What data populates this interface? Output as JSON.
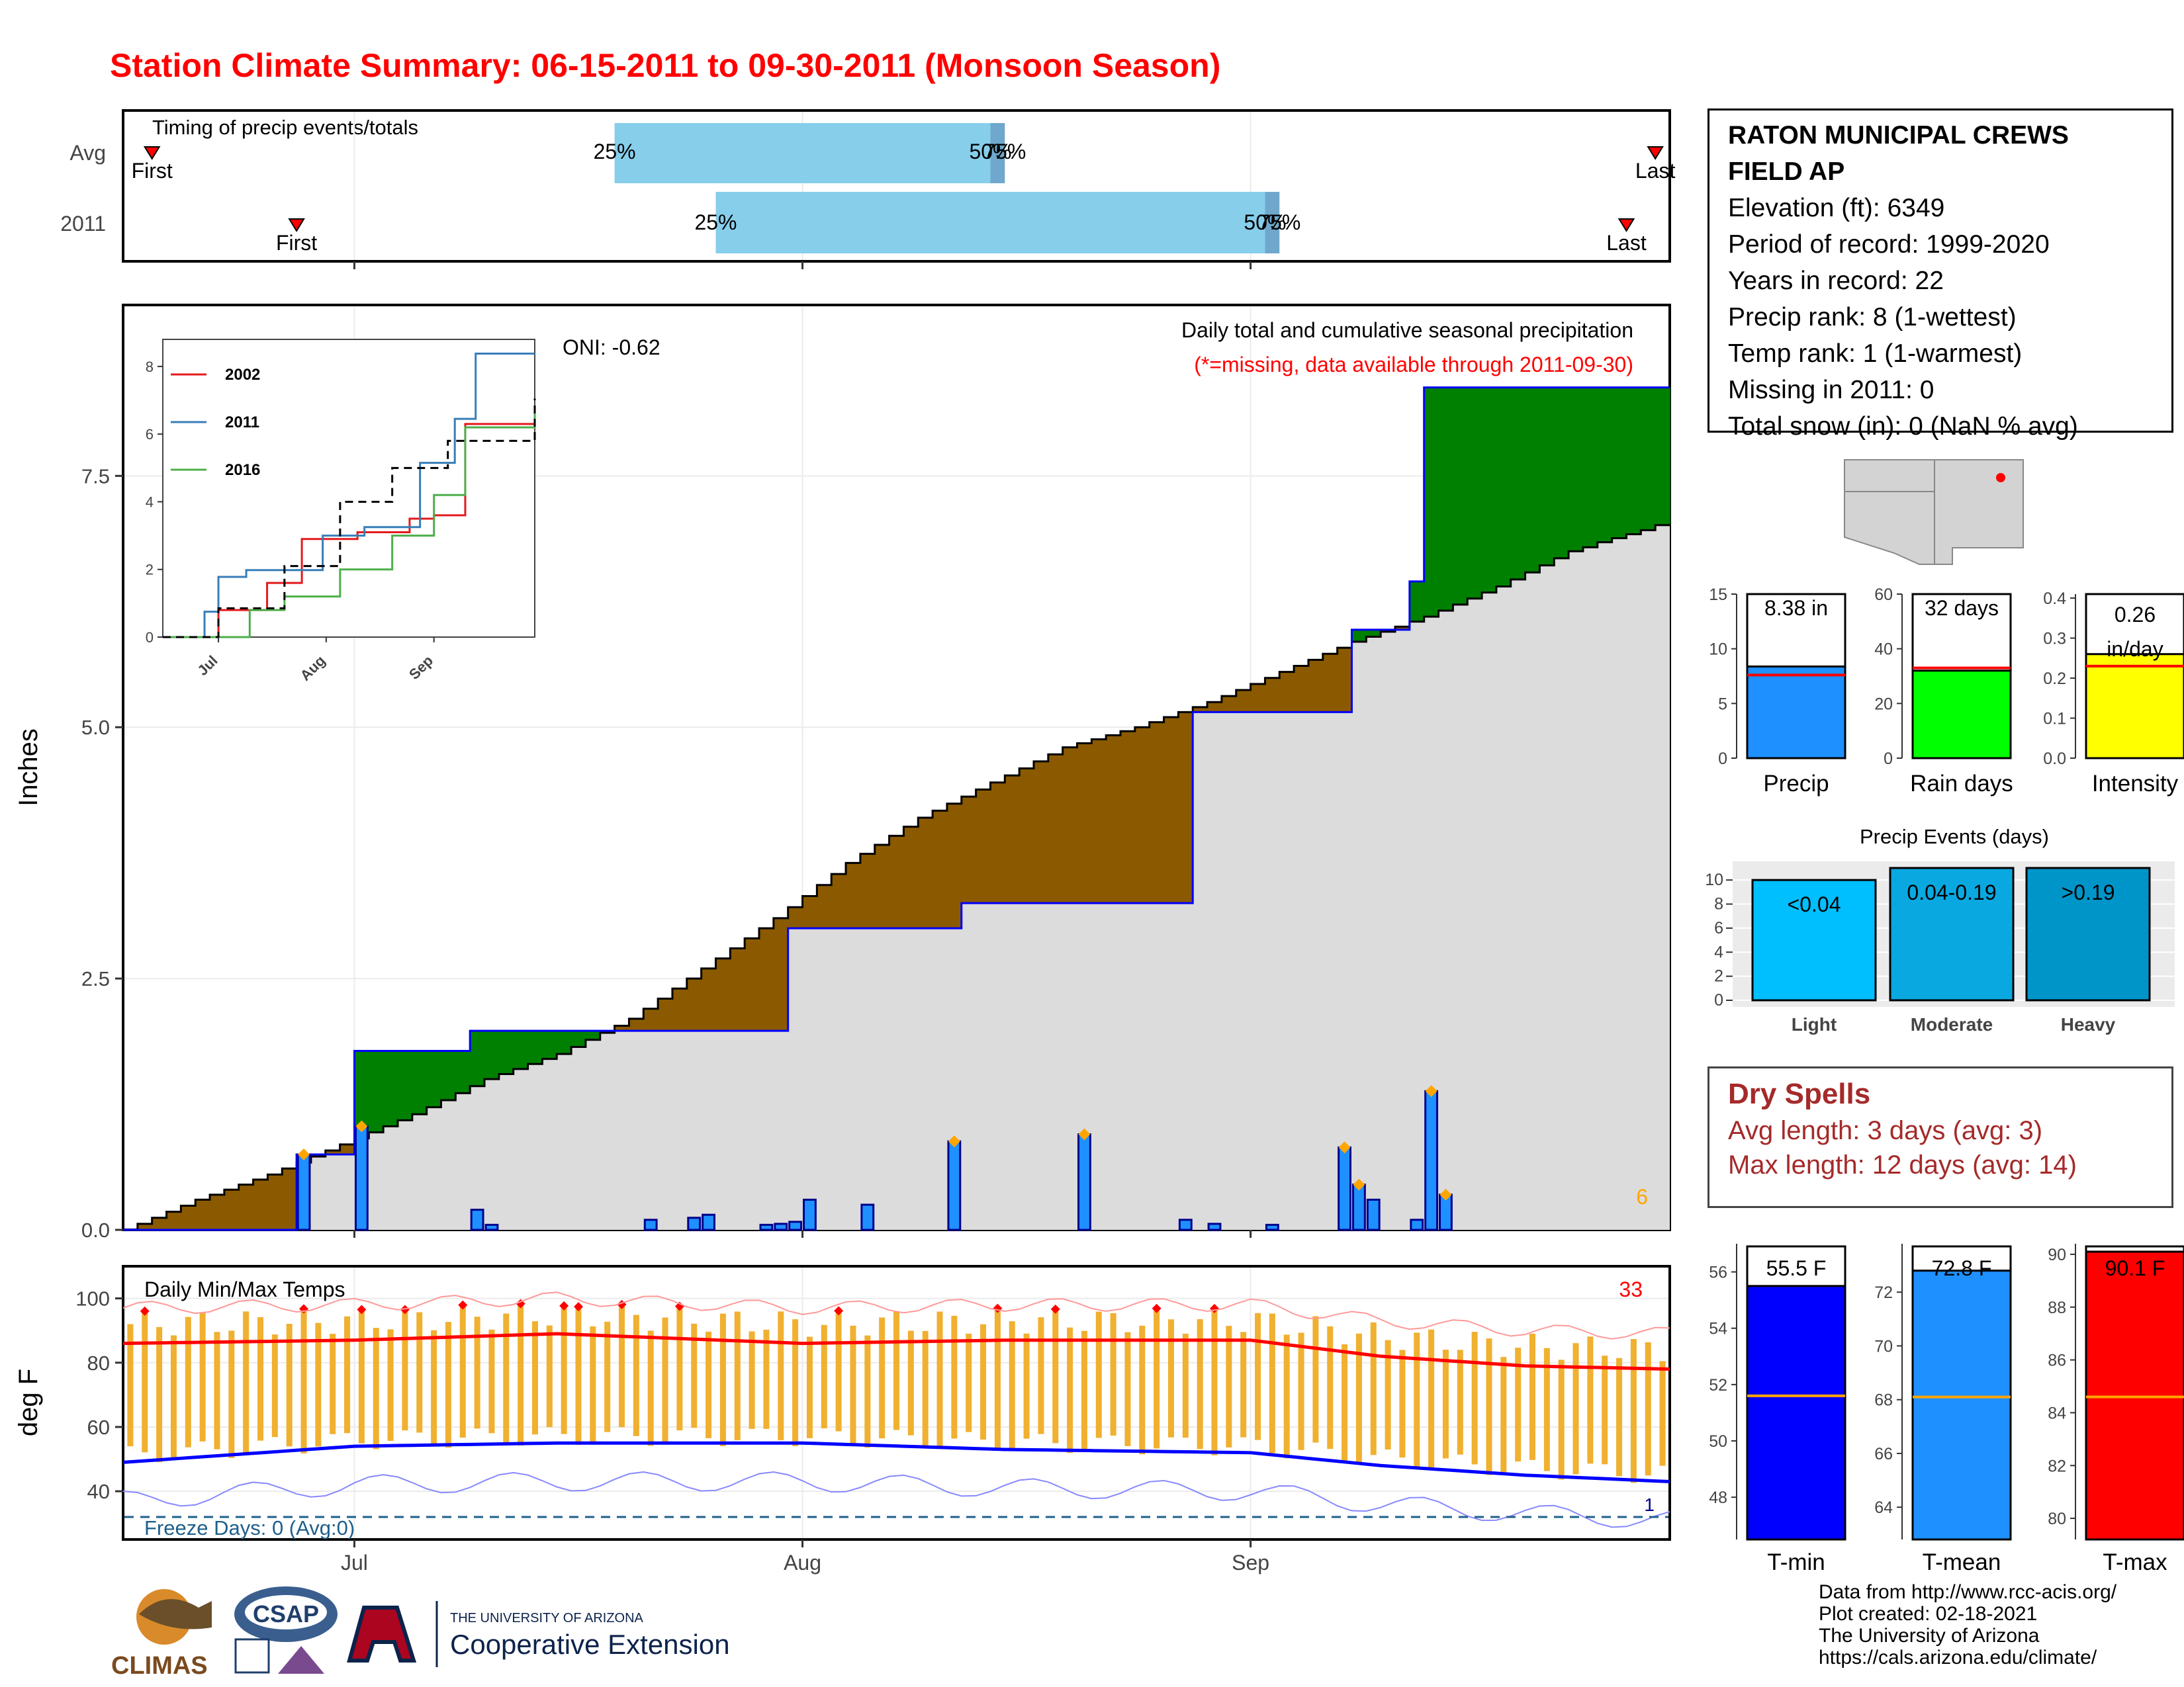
{
  "title": "Station Climate Summary: 06-15-2011 to 09-30-2011 (Monsoon Season)",
  "station": {
    "name_line1": "RATON MUNICIPAL CREWS",
    "name_line2": "FIELD AP",
    "elevation": "Elevation (ft): 6349",
    "period": "Period of record: 1999-2020",
    "years": "Years in record: 22",
    "precip_rank": "Precip rank: 8 (1-wettest)",
    "temp_rank": "Temp rank: 1 (1-warmest)",
    "missing": "Missing in 2011: 0",
    "snow": "Total snow (in): 0 (NaN % avg)"
  },
  "timing": {
    "title": "Timing of precip events/totals",
    "rows": [
      {
        "label": "Avg",
        "first": "First",
        "last": "Last",
        "p25": "25%",
        "p50": "50%",
        "p75": "75%"
      },
      {
        "label": "2011",
        "first": "First",
        "last": "Last",
        "p25": "25%",
        "p50": "50%",
        "p75": "75%"
      }
    ]
  },
  "precip_panel": {
    "ylabel": "Inches",
    "oni": "ONI: -0.62",
    "subtitle": "Daily total and cumulative seasonal precipitation",
    "note": "(*=missing, data available through 2011-09-30)",
    "corner_count": "6",
    "y_ticks": [
      "0.0",
      "2.5",
      "5.0",
      "7.5"
    ]
  },
  "temp_panel": {
    "ylabel": "deg F",
    "title": "Daily Min/Max Temps",
    "count": "33",
    "freeze": "Freeze Days: 0 (Avg:0)",
    "freeze_count": "1",
    "y_ticks": [
      "40",
      "60",
      "80",
      "100"
    ],
    "x_ticks": [
      "Jul",
      "Aug",
      "Sep"
    ]
  },
  "summary_bars": {
    "precip": {
      "value_label": "8.38 in",
      "label": "Precip",
      "ticks": [
        "0",
        "5",
        "10",
        "15"
      ]
    },
    "rain_days": {
      "value_label": "32 days",
      "label": "Rain days",
      "ticks": [
        "0",
        "20",
        "40",
        "60"
      ]
    },
    "intensity": {
      "value_label1": "0.26",
      "value_label2": "in/day",
      "label": "Intensity",
      "ticks": [
        "0.0",
        "0.1",
        "0.2",
        "0.3",
        "0.4"
      ]
    }
  },
  "events": {
    "title": "Precip Events (days)",
    "ticks": [
      "0",
      "2",
      "4",
      "6",
      "8",
      "10"
    ],
    "bars": [
      {
        "label": "<0.04",
        "cat": "Light"
      },
      {
        "label": "0.04-0.19",
        "cat": "Moderate"
      },
      {
        "label": ">0.19",
        "cat": "Heavy"
      }
    ]
  },
  "dry_spells": {
    "title": "Dry Spells",
    "avg": "Avg length: 3 days (avg: 3)",
    "max": "Max length: 12 days (avg: 14)"
  },
  "temp_bars": {
    "tmin": {
      "value_label": "55.5 F",
      "label": "T-min",
      "ticks": [
        "48",
        "50",
        "52",
        "54",
        "56"
      ]
    },
    "tmean": {
      "value_label": "72.8 F",
      "label": "T-mean",
      "ticks": [
        "64",
        "66",
        "68",
        "70",
        "72"
      ]
    },
    "tmax": {
      "value_label": "90.1 F",
      "label": "T-max",
      "ticks": [
        "80",
        "82",
        "84",
        "86",
        "88",
        "90"
      ]
    }
  },
  "inset": {
    "legend": [
      "2002",
      "2011",
      "2016"
    ],
    "y_ticks": [
      "0",
      "2",
      "4",
      "6",
      "8"
    ],
    "x_ticks": [
      "Jul",
      "Aug",
      "Sep"
    ]
  },
  "credits": [
    "Data from http://www.rcc-acis.org/",
    "Plot created: 02-18-2021",
    "The University of Arizona",
    "https://cals.arizona.edu/climate/"
  ],
  "logos": {
    "climas": "CLIMAS",
    "csap": "CSAP",
    "ua_top": "THE UNIVERSITY OF ARIZONA",
    "ua_main": "Cooperative Extension"
  },
  "chart_data": [
    {
      "type": "bar",
      "title": "Timing of precip events/totals",
      "categories": [
        "Avg",
        "2011"
      ],
      "series": [
        {
          "name": "First",
          "values": [
            "2011-06-17",
            "2011-06-27"
          ]
        },
        {
          "name": "25%",
          "values": [
            "2011-07-19",
            "2011-07-26"
          ]
        },
        {
          "name": "50%",
          "values": [
            "2011-08-14",
            "2011-09-02"
          ]
        },
        {
          "name": "75%",
          "values": [
            "2011-08-14",
            "2011-09-02"
          ]
        },
        {
          "name": "Last",
          "values": [
            "2011-09-29",
            "2011-09-27"
          ]
        }
      ]
    },
    {
      "type": "area",
      "title": "Daily total and cumulative seasonal precipitation",
      "ylabel": "Inches",
      "ylim": [
        0,
        9.2
      ],
      "xlim": [
        "2011-06-15",
        "2011-09-30"
      ],
      "avg_cumulative": {
        "x": [
          "2011-06-15",
          "2011-06-20",
          "2011-06-25",
          "2011-06-30",
          "2011-07-05",
          "2011-07-10",
          "2011-07-15",
          "2011-07-20",
          "2011-07-25",
          "2011-07-30",
          "2011-08-04",
          "2011-08-09",
          "2011-08-14",
          "2011-08-19",
          "2011-08-24",
          "2011-08-29",
          "2011-09-03",
          "2011-09-08",
          "2011-09-13",
          "2011-09-18",
          "2011-09-23",
          "2011-09-30"
        ],
        "values": [
          0.0,
          0.3,
          0.55,
          0.85,
          1.15,
          1.5,
          1.75,
          2.1,
          2.6,
          3.1,
          3.65,
          4.1,
          4.45,
          4.8,
          5.0,
          5.25,
          5.55,
          5.85,
          6.1,
          6.4,
          6.75,
          7.05
        ]
      },
      "cumulative_2011": {
        "x": [
          "2011-06-15",
          "2011-06-26",
          "2011-06-27",
          "2011-06-30",
          "2011-07-01",
          "2011-07-08",
          "2011-07-09",
          "2011-07-24",
          "2011-07-31",
          "2011-08-11",
          "2011-08-12",
          "2011-08-21",
          "2011-08-28",
          "2011-09-07",
          "2011-09-08",
          "2011-09-12",
          "2011-09-13",
          "2011-09-30"
        ],
        "values": [
          0.0,
          0.0,
          0.75,
          0.75,
          1.78,
          1.78,
          1.98,
          1.98,
          3.0,
          3.0,
          3.25,
          3.25,
          5.15,
          5.15,
          5.97,
          6.45,
          8.38,
          8.38
        ]
      },
      "daily_2011": {
        "x": [
          "2011-06-27",
          "2011-07-01",
          "2011-07-09",
          "2011-07-10",
          "2011-07-21",
          "2011-07-24",
          "2011-07-25",
          "2011-07-29",
          "2011-07-30",
          "2011-07-31",
          "2011-08-01",
          "2011-08-05",
          "2011-08-11",
          "2011-08-20",
          "2011-08-27",
          "2011-08-29",
          "2011-09-02",
          "2011-09-07",
          "2011-09-08",
          "2011-09-09",
          "2011-09-12",
          "2011-09-13",
          "2011-09-14"
        ],
        "values": [
          0.75,
          1.03,
          0.2,
          0.05,
          0.1,
          0.12,
          0.15,
          0.05,
          0.06,
          0.08,
          0.3,
          0.25,
          0.88,
          0.95,
          0.1,
          0.06,
          0.05,
          0.82,
          0.45,
          0.3,
          0.1,
          1.38,
          0.35
        ]
      }
    },
    {
      "type": "line",
      "title": "Daily Min/Max Temps",
      "ylabel": "deg F",
      "ylim": [
        25,
        110
      ],
      "series": [
        {
          "name": "Avg Max",
          "x": [
            "2011-06-15",
            "2011-07-01",
            "2011-07-15",
            "2011-08-01",
            "2011-08-15",
            "2011-09-01",
            "2011-09-10",
            "2011-09-20",
            "2011-09-30"
          ],
          "values": [
            86,
            87,
            89,
            86,
            87,
            87,
            82,
            79,
            78
          ]
        },
        {
          "name": "Avg Min",
          "x": [
            "2011-06-15",
            "2011-07-01",
            "2011-07-15",
            "2011-08-01",
            "2011-08-15",
            "2011-09-01",
            "2011-09-10",
            "2011-09-20",
            "2011-09-30"
          ],
          "values": [
            49,
            54,
            55,
            55,
            53,
            52,
            48,
            45,
            43
          ]
        }
      ]
    },
    {
      "type": "bar",
      "categories": [
        "Precip",
        "Rain days",
        "Intensity"
      ],
      "values": [
        8.38,
        32,
        0.26
      ],
      "averages": [
        7.6,
        33,
        0.23
      ]
    },
    {
      "type": "bar",
      "title": "Precip Events (days)",
      "categories": [
        "Light",
        "Moderate",
        "Heavy"
      ],
      "values": [
        10,
        11,
        11
      ]
    },
    {
      "type": "bar",
      "categories": [
        "T-min",
        "T-mean",
        "T-max"
      ],
      "values": [
        55.5,
        72.8,
        90.1
      ],
      "averages": [
        51.6,
        68.1,
        84.6
      ]
    },
    {
      "type": "line",
      "series": [
        {
          "name": "2002",
          "x": [
            "2011-06-15",
            "2011-07-01",
            "2011-07-15",
            "2011-07-25",
            "2011-08-10",
            "2011-08-25",
            "2011-09-01",
            "2011-09-10",
            "2011-09-30"
          ],
          "values": [
            0.0,
            0.8,
            1.6,
            2.9,
            3.1,
            3.5,
            3.6,
            6.3,
            6.7
          ]
        },
        {
          "name": "2011",
          "x": [
            "2011-06-15",
            "2011-06-26",
            "2011-06-27",
            "2011-07-01",
            "2011-07-09",
            "2011-07-31",
            "2011-08-12",
            "2011-08-28",
            "2011-09-07",
            "2011-09-13",
            "2011-09-30"
          ],
          "values": [
            0.0,
            0.0,
            0.75,
            1.78,
            1.98,
            3.0,
            3.25,
            5.15,
            6.45,
            8.38,
            8.38
          ]
        },
        {
          "name": "2016",
          "x": [
            "2011-06-15",
            "2011-07-10",
            "2011-07-20",
            "2011-08-05",
            "2011-08-20",
            "2011-09-01",
            "2011-09-10",
            "2011-09-30"
          ],
          "values": [
            0.0,
            0.8,
            1.2,
            2.0,
            3.0,
            4.2,
            6.2,
            6.7
          ]
        },
        {
          "name": "Avg",
          "x": [
            "2011-06-15",
            "2011-07-01",
            "2011-07-20",
            "2011-08-05",
            "2011-08-20",
            "2011-09-05",
            "2011-09-30"
          ],
          "values": [
            0.0,
            0.85,
            2.1,
            4.0,
            5.0,
            5.8,
            7.05
          ]
        }
      ]
    }
  ]
}
